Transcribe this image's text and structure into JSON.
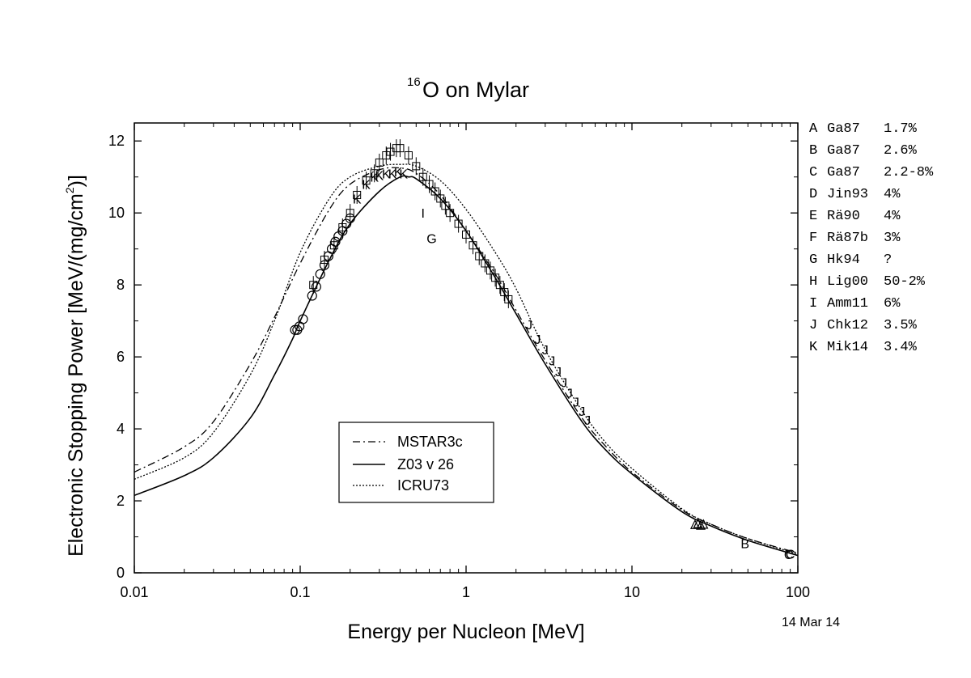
{
  "chart_data": {
    "type": "scatter",
    "title": "O on Mylar",
    "title_superscript": "16",
    "xlabel": "Energy per Nucleon [MeV]",
    "ylabel_prefix": "Electronic Stopping Power [MeV/(mg/cm",
    "ylabel_superscript": "2",
    "ylabel_suffix": ")]",
    "xscale": "log",
    "xlim": [
      0.01,
      100
    ],
    "ylim": [
      0,
      12.5
    ],
    "x_ticks": [
      0.01,
      0.1,
      1,
      10,
      100
    ],
    "x_tick_labels": [
      "0.01",
      "0.1",
      "1",
      "10",
      "100"
    ],
    "y_ticks": [
      0,
      2,
      4,
      6,
      8,
      10,
      12
    ],
    "y_tick_labels": [
      "0",
      "2",
      "4",
      "6",
      "8",
      "10",
      "12"
    ],
    "grid": false,
    "legend_position": "lower-center",
    "date_note": "14 Mar 14",
    "curves": [
      {
        "name": "MSTAR3c",
        "style": "dashdot",
        "x": [
          0.01,
          0.02,
          0.03,
          0.05,
          0.07,
          0.1,
          0.15,
          0.2,
          0.3,
          0.4,
          0.5,
          0.7,
          1,
          1.5,
          2,
          3,
          5,
          7,
          10,
          20,
          30,
          50,
          100
        ],
        "y": [
          2.8,
          3.5,
          4.2,
          5.8,
          7.1,
          8.6,
          10.1,
          10.8,
          11.2,
          11.25,
          11.1,
          10.5,
          9.5,
          8.3,
          7.3,
          5.9,
          4.3,
          3.5,
          2.8,
          1.75,
          1.35,
          0.95,
          0.55
        ]
      },
      {
        "name": "Z03 v 26",
        "style": "solid",
        "x": [
          0.01,
          0.02,
          0.03,
          0.05,
          0.07,
          0.09,
          0.1,
          0.15,
          0.2,
          0.3,
          0.4,
          0.45,
          0.5,
          0.7,
          1,
          1.5,
          2,
          3,
          5,
          7,
          10,
          20,
          30,
          50,
          100
        ],
        "y": [
          2.15,
          2.7,
          3.2,
          4.3,
          5.5,
          6.5,
          7.0,
          8.7,
          9.7,
          10.6,
          11.0,
          11.0,
          10.95,
          10.4,
          9.5,
          8.2,
          7.2,
          5.8,
          4.2,
          3.4,
          2.75,
          1.7,
          1.3,
          0.9,
          0.48
        ]
      },
      {
        "name": "ICRU73",
        "style": "dotted",
        "x": [
          0.01,
          0.02,
          0.03,
          0.05,
          0.07,
          0.1,
          0.15,
          0.2,
          0.3,
          0.4,
          0.5,
          0.7,
          1,
          1.5,
          2,
          3,
          5,
          7,
          10,
          20,
          30,
          50,
          100
        ],
        "y": [
          2.6,
          3.2,
          3.9,
          5.5,
          7.0,
          8.9,
          10.4,
          11.0,
          11.3,
          11.35,
          11.3,
          10.9,
          10.1,
          8.9,
          7.9,
          6.2,
          4.5,
          3.6,
          2.9,
          1.78,
          1.35,
          0.95,
          0.52
        ]
      }
    ],
    "datasets": [
      {
        "label": "A",
        "marker": "triangle",
        "x": [
          24,
          25,
          26,
          27
        ],
        "y": [
          1.32,
          1.35,
          1.3,
          1.33
        ]
      },
      {
        "label": "B",
        "marker": "text",
        "x": [
          48
        ],
        "y": [
          0.82
        ]
      },
      {
        "label": "C",
        "marker": "text",
        "x": [
          88,
          90
        ],
        "y": [
          0.52,
          0.53
        ]
      },
      {
        "label": "D",
        "marker": "circle",
        "x": [
          0.093,
          0.096,
          0.099,
          0.104
        ],
        "y": [
          6.75,
          6.75,
          6.85,
          7.05
        ]
      },
      {
        "label": "E",
        "marker": "circle",
        "x": [
          0.118,
          0.125,
          0.132,
          0.14,
          0.148,
          0.155,
          0.163
        ],
        "y": [
          7.7,
          7.95,
          8.3,
          8.55,
          8.8,
          9.0,
          9.2
        ]
      },
      {
        "label": "F",
        "marker": "circle",
        "x": [
          0.17,
          0.18,
          0.19,
          0.2
        ],
        "y": [
          9.35,
          9.5,
          9.7,
          9.85
        ]
      },
      {
        "label": "G",
        "marker": "text",
        "x": [
          0.62
        ],
        "y": [
          9.3
        ]
      },
      {
        "label": "H",
        "marker": "errorbar-square",
        "x": [
          0.12,
          0.14,
          0.16,
          0.18,
          0.2,
          0.22,
          0.25,
          0.28,
          0.3,
          0.33,
          0.35,
          0.38,
          0.4,
          0.45,
          0.5,
          0.55,
          0.6,
          0.65,
          0.7,
          0.75,
          0.8,
          0.9,
          1.0,
          1.1,
          1.2,
          1.3,
          1.4,
          1.5,
          1.6,
          1.7,
          1.8
        ],
        "y": [
          8.0,
          8.7,
          9.1,
          9.6,
          10.0,
          10.5,
          10.9,
          11.1,
          11.4,
          11.6,
          11.7,
          11.8,
          11.8,
          11.6,
          11.3,
          11.0,
          10.8,
          10.6,
          10.4,
          10.2,
          10.0,
          9.7,
          9.4,
          9.1,
          8.8,
          8.6,
          8.4,
          8.2,
          8.0,
          7.8,
          7.6
        ]
      },
      {
        "label": "I",
        "marker": "text",
        "x": [
          0.55
        ],
        "y": [
          10.0
        ]
      },
      {
        "label": "J",
        "marker": "text",
        "x": [
          2.4,
          2.7,
          3.0,
          3.3,
          3.6,
          3.9,
          4.2,
          4.6,
          5.0,
          5.4
        ],
        "y": [
          6.9,
          6.5,
          6.2,
          5.9,
          5.6,
          5.3,
          5.0,
          4.75,
          4.5,
          4.25
        ]
      },
      {
        "label": "K",
        "marker": "text",
        "x": [
          0.22,
          0.25,
          0.28,
          0.3,
          0.33,
          0.36,
          0.39,
          0.42
        ],
        "y": [
          10.4,
          10.8,
          11.0,
          11.05,
          11.1,
          11.1,
          11.15,
          11.1
        ]
      }
    ],
    "references": [
      {
        "label": "A",
        "ref": "Ga87",
        "uncertainty": "1.7%"
      },
      {
        "label": "B",
        "ref": "Ga87",
        "uncertainty": "2.6%"
      },
      {
        "label": "C",
        "ref": "Ga87",
        "uncertainty": "2.2-8%"
      },
      {
        "label": "D",
        "ref": "Jin93",
        "uncertainty": "4%"
      },
      {
        "label": "E",
        "ref": "Rä90",
        "uncertainty": "4%"
      },
      {
        "label": "F",
        "ref": "Rä87b",
        "uncertainty": "3%"
      },
      {
        "label": "G",
        "ref": "Hk94",
        "uncertainty": "?"
      },
      {
        "label": "H",
        "ref": "Lig00",
        "uncertainty": "50-2%"
      },
      {
        "label": "I",
        "ref": "Amm11",
        "uncertainty": "6%"
      },
      {
        "label": "J",
        "ref": "Chk12",
        "uncertainty": "3.5%"
      },
      {
        "label": "K",
        "ref": "Mik14",
        "uncertainty": "3.4%"
      }
    ]
  }
}
